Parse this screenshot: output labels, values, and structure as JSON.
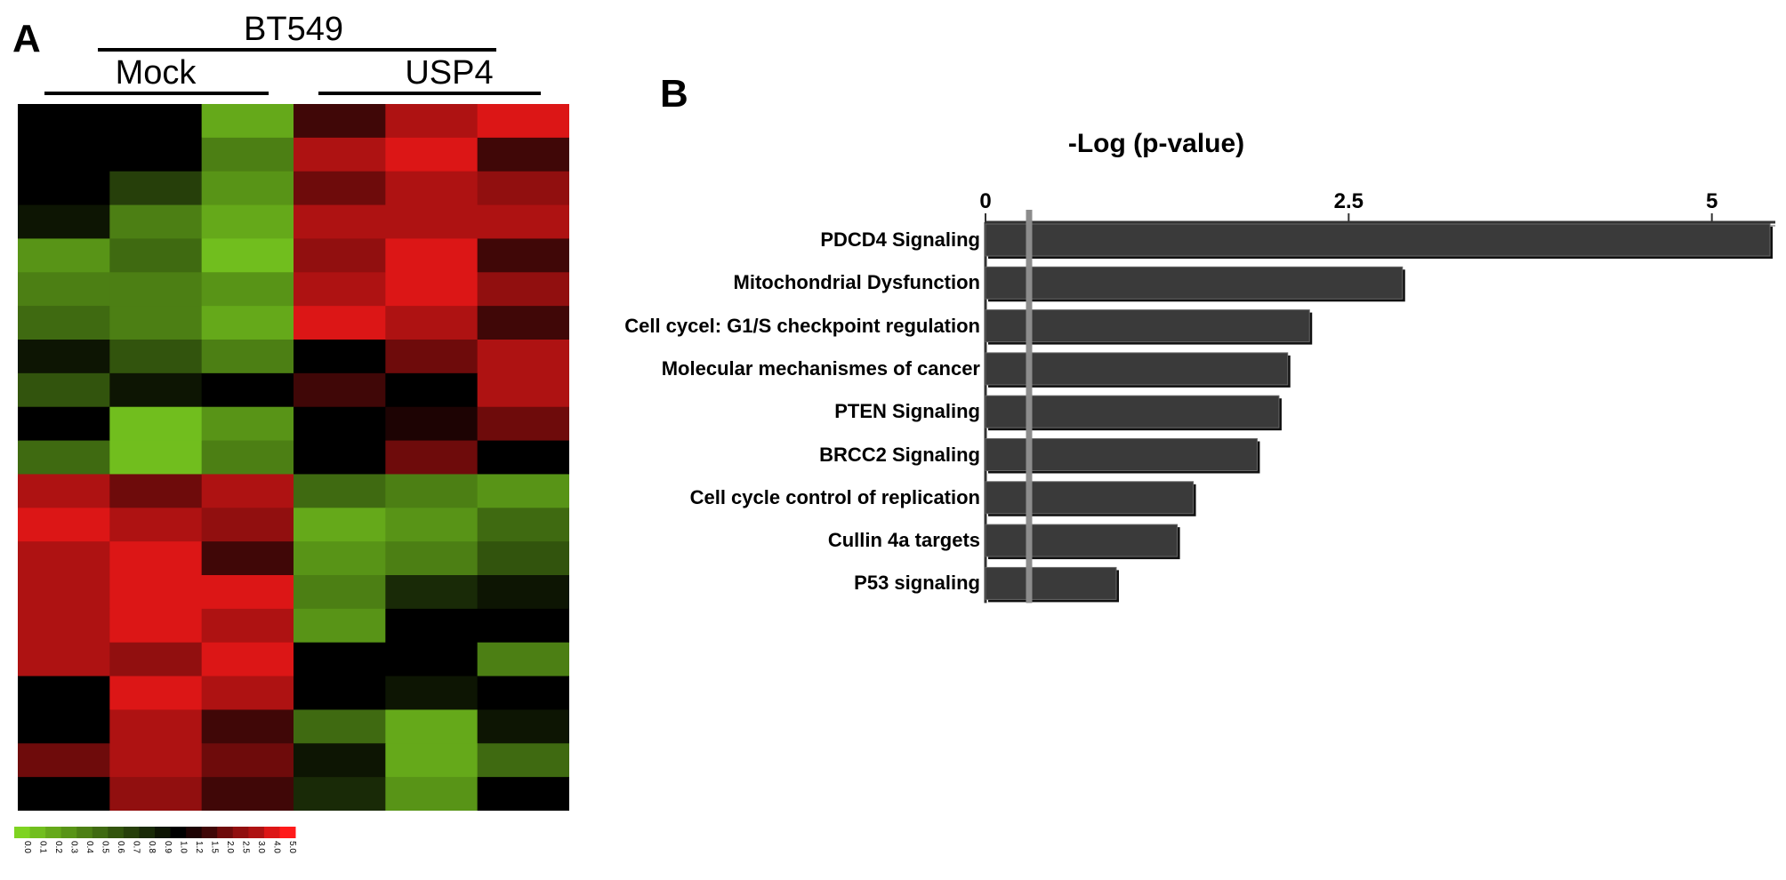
{
  "panel_a": {
    "letter": "A",
    "cell_line": "BT549",
    "groups": [
      "Mock",
      "USP4"
    ]
  },
  "panel_b": {
    "letter": "B"
  },
  "chart_data": [
    {
      "type": "heatmap",
      "columns": 6,
      "column_groups": [
        {
          "name": "Mock",
          "columns": [
            1,
            2,
            3
          ]
        },
        {
          "name": "USP4",
          "columns": [
            4,
            5,
            6
          ]
        }
      ],
      "colorscale": {
        "low_color": "#7ed321",
        "mid_color": "#000000",
        "high_color": "#ff1a1a",
        "tick_labels": [
          "0.0",
          "0.1",
          "0.2",
          "0.3",
          "0.4",
          "0.5",
          "0.6",
          "0.7",
          "0.8",
          "0.9",
          "1.0",
          "1.2",
          "1.5",
          "2.0",
          "2.5",
          "3.0",
          "4.0",
          "5.0"
        ]
      },
      "rows": [
        [
          1.0,
          1.0,
          0.2
        ],
        [
          1.0,
          1.0,
          0.4
        ],
        [
          1.0,
          0.7,
          0.3
        ],
        [
          0.9,
          0.4,
          0.2
        ],
        [
          0.3,
          0.5,
          0.1
        ],
        [
          0.4,
          0.4,
          0.3
        ],
        [
          0.5,
          0.4,
          0.2
        ],
        [
          0.9,
          0.6,
          0.4
        ],
        [
          0.6,
          0.9,
          1.0
        ],
        [
          1.0,
          0.1,
          0.3
        ],
        [
          0.5,
          0.1,
          0.4
        ],
        [
          3.0,
          2.0,
          3.0
        ],
        [
          4.0,
          3.0,
          2.5
        ],
        [
          3.0,
          4.0,
          1.5
        ],
        [
          3.0,
          4.0,
          4.0
        ],
        [
          3.0,
          4.0,
          3.0
        ],
        [
          3.0,
          2.5,
          4.0
        ],
        [
          1.0,
          4.0,
          3.0
        ],
        [
          1.0,
          3.0,
          1.5
        ],
        [
          2.0,
          3.0,
          2.0
        ],
        [
          1.0,
          2.5,
          1.5
        ]
      ],
      "rows_usp4": [
        [
          1.5,
          3.0,
          4.0
        ],
        [
          3.0,
          4.0,
          1.5
        ],
        [
          2.0,
          3.0,
          2.5
        ],
        [
          3.0,
          3.0,
          3.0
        ],
        [
          2.5,
          4.0,
          1.5
        ],
        [
          3.0,
          4.0,
          2.5
        ],
        [
          4.0,
          3.0,
          1.5
        ],
        [
          1.0,
          2.0,
          3.0
        ],
        [
          1.5,
          1.0,
          3.0
        ],
        [
          1.0,
          1.2,
          2.0
        ],
        [
          1.0,
          2.0,
          1.0
        ],
        [
          0.5,
          0.4,
          0.3
        ],
        [
          0.2,
          0.3,
          0.5
        ],
        [
          0.3,
          0.4,
          0.6
        ],
        [
          0.4,
          0.8,
          0.9
        ],
        [
          0.3,
          1.0,
          1.0
        ],
        [
          1.0,
          1.0,
          0.4
        ],
        [
          1.0,
          0.9,
          1.0
        ],
        [
          0.5,
          0.2,
          0.9
        ],
        [
          0.9,
          0.2,
          0.5
        ],
        [
          0.8,
          0.3,
          1.0
        ]
      ]
    },
    {
      "type": "bar",
      "orientation": "horizontal",
      "title": "-Log (p-value)",
      "xlim": [
        0,
        5.4
      ],
      "xticks": [
        0,
        2.5,
        5
      ],
      "xtick_labels": [
        "0",
        "2.5",
        "5"
      ],
      "threshold": 0.3,
      "categories": [
        "PDCD4 Signaling",
        "Mitochondrial Dysfunction",
        "Cell cycel: G1/S checkpoint regulation",
        "Molecular mechanismes of cancer",
        "PTEN Signaling",
        "BRCC2 Signaling",
        "Cell cycle control of  replication",
        "Cullin 4a targets",
        "P53 signaling"
      ],
      "values": [
        5.4,
        2.87,
        2.23,
        2.08,
        2.02,
        1.87,
        1.43,
        1.32,
        0.9
      ],
      "bar_color": "#3a3a3a"
    }
  ]
}
